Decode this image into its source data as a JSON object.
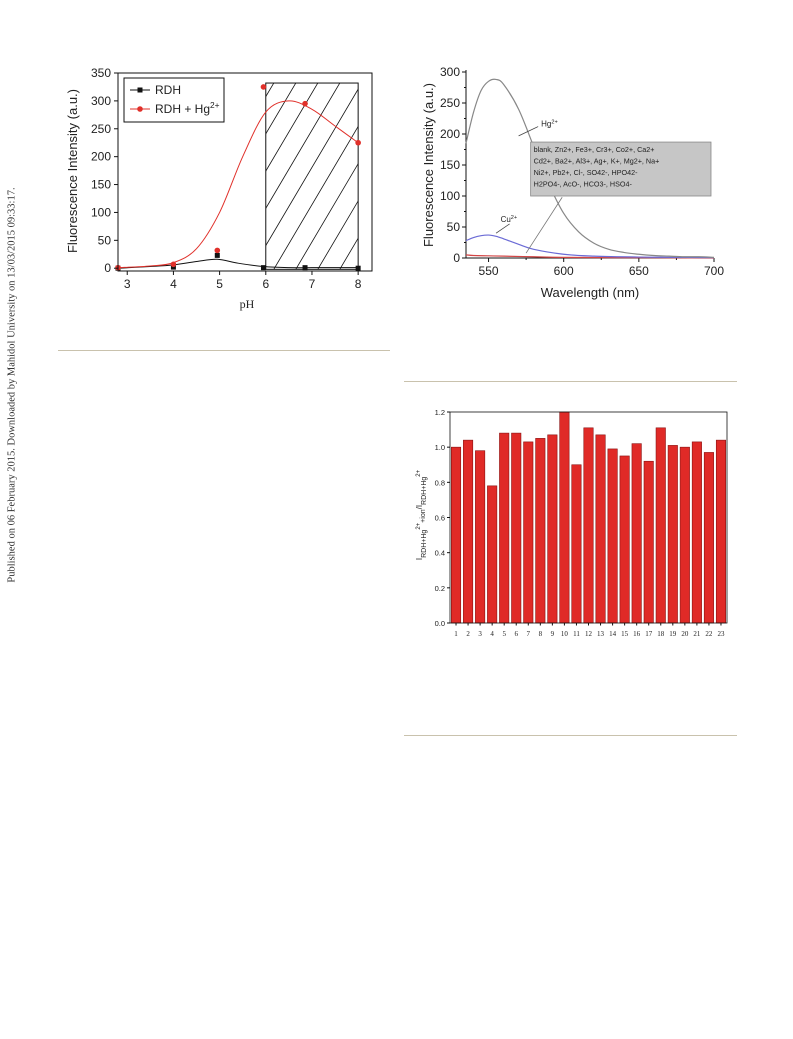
{
  "side_note": "Published on 06 February 2015. Downloaded by Mahidol University on 13/03/2015 09:33:17.",
  "chart_data": [
    {
      "type": "scatter",
      "xlabel": "pH",
      "ylabel": "Fluorescence Intensity (a.u.)",
      "xlim": [
        2.8,
        8.3
      ],
      "ylim": [
        -5,
        350
      ],
      "xticks": [
        3,
        4,
        5,
        6,
        7,
        8
      ],
      "yticks": [
        0,
        50,
        100,
        150,
        200,
        250,
        300,
        350
      ],
      "legend_position": "top-left",
      "shaded_region": {
        "x_from": 6,
        "x_to": 8,
        "pattern": "diagonal hatch"
      },
      "series": [
        {
          "name": "RDH",
          "color": "#111111",
          "marker": "square",
          "x": [
            2.8,
            4,
            4.95,
            5.95,
            6.85,
            8
          ],
          "y": [
            0,
            2,
            23,
            1,
            1,
            0
          ],
          "fit_x": [
            2.8,
            3.5,
            4,
            4.5,
            4.95,
            5.4,
            5.95,
            6.5,
            7,
            7.5,
            8
          ],
          "fit_y": [
            0,
            3,
            6,
            12,
            16,
            9,
            3,
            1,
            1,
            1,
            1
          ]
        },
        {
          "name": "RDH + Hg2+",
          "color": "#e0302a",
          "marker": "circle",
          "x": [
            2.8,
            4,
            4.95,
            5.95,
            6.85,
            8
          ],
          "y": [
            1,
            7,
            32,
            325,
            295,
            225
          ],
          "fit_x": [
            2.8,
            3.5,
            4,
            4.5,
            5,
            5.5,
            6,
            6.5,
            7,
            7.5,
            8
          ],
          "fit_y": [
            1,
            4,
            10,
            35,
            100,
            200,
            280,
            300,
            285,
            255,
            225
          ]
        }
      ]
    },
    {
      "type": "line",
      "xlabel": "Wavelength (nm)",
      "ylabel": "Fluorescence Intensity (a.u.)",
      "xlim": [
        535,
        700
      ],
      "ylim": [
        0,
        300
      ],
      "xticks": [
        550,
        600,
        650,
        700
      ],
      "yticks": [
        0,
        50,
        100,
        150,
        200,
        250,
        300
      ],
      "annotations": [
        {
          "text": "Hg2+",
          "series": "Hg"
        },
        {
          "text": "Cu2+",
          "series": "Cu"
        },
        {
          "text": "blank, Zn2+, Fe3+, Cr3+, Co2+, Ca2+, Cd2+, Ba2+, Al3+, Ag+, K+, Mg2+, Na+, Ni2+, Pb2+, Cl-, SO42-, HPO42-, H2PO4-, AcO-, HCO3-, HSO4-",
          "series": "others"
        }
      ],
      "series": [
        {
          "name": "Hg",
          "color": "#888888",
          "x": [
            535,
            540,
            545,
            550,
            555,
            560,
            570,
            580,
            590,
            600,
            610,
            620,
            630,
            640,
            650,
            660,
            670,
            680,
            690,
            700
          ],
          "y": [
            185,
            235,
            270,
            285,
            288,
            280,
            240,
            180,
            120,
            72,
            42,
            24,
            14,
            9,
            6,
            4,
            3,
            2,
            2,
            1
          ]
        },
        {
          "name": "Cu",
          "color": "#6b6bd6",
          "x": [
            535,
            540,
            545,
            550,
            555,
            560,
            570,
            580,
            600,
            620,
            650,
            680,
            700
          ],
          "y": [
            28,
            33,
            36,
            37,
            35,
            31,
            22,
            14,
            6,
            3,
            1.5,
            1,
            0.5
          ]
        },
        {
          "name": "others",
          "color": "#d24545",
          "x": [
            535,
            540,
            550,
            560,
            580,
            600,
            650,
            700
          ],
          "y": [
            5,
            4,
            3.5,
            3,
            2,
            1,
            0.5,
            0
          ]
        }
      ]
    },
    {
      "type": "bar",
      "ylabel": "I RDH+Hg2+ +ion / I RDH+Hg2+",
      "ylim": [
        0,
        1.2
      ],
      "yticks": [
        "0.0",
        "0.2",
        "0.4",
        "0.6",
        "0.8",
        "1.0",
        "1.2"
      ],
      "color": "#e02a27",
      "categories": [
        "1",
        "2",
        "3",
        "4",
        "5",
        "6",
        "7",
        "8",
        "9",
        "10",
        "11",
        "12",
        "13",
        "14",
        "15",
        "16",
        "17",
        "18",
        "19",
        "20",
        "21",
        "22",
        "23"
      ],
      "values": [
        1.0,
        1.04,
        0.98,
        0.78,
        1.08,
        1.08,
        1.03,
        1.05,
        1.07,
        1.2,
        0.9,
        1.11,
        1.07,
        0.99,
        0.95,
        1.02,
        0.92,
        1.11,
        1.01,
        1.0,
        1.03,
        0.97,
        1.04
      ]
    }
  ]
}
